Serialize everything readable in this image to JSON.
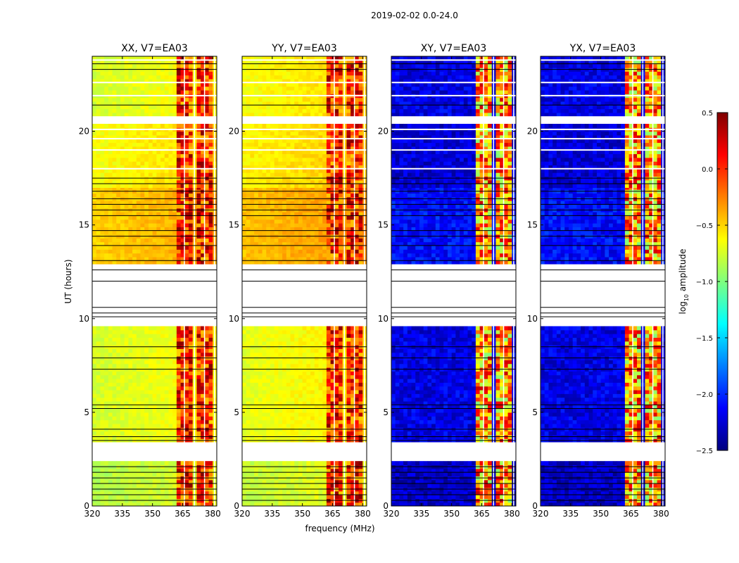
{
  "figure": {
    "suptitle": "2019-02-02 0.0-24.0",
    "xlabel": "frequency (MHz)",
    "ylabel": "UT (hours)",
    "colorbar_label_prefix": "log",
    "colorbar_label_sub": "10",
    "colorbar_label_suffix": " amplitude"
  },
  "chart_data": {
    "type": "heatmap",
    "colormap": "jet",
    "x": {
      "label": "frequency (MHz)",
      "range": [
        320,
        382
      ],
      "ticks": [
        320,
        335,
        350,
        365,
        380
      ],
      "tick_labels": [
        "320",
        "335",
        "350",
        "365",
        "380"
      ]
    },
    "y": {
      "label": "UT (hours)",
      "range": [
        0,
        24
      ],
      "ticks": [
        0,
        5,
        10,
        15,
        20
      ],
      "tick_labels": [
        "0",
        "5",
        "10",
        "15",
        "20"
      ]
    },
    "colorbar": {
      "label": "log10 amplitude",
      "range": [
        -2.5,
        0.5
      ],
      "ticks": [
        -2.5,
        -2.0,
        -1.5,
        -1.0,
        -0.5,
        0.0,
        0.5
      ],
      "tick_labels": [
        "−2.5",
        "−2.0",
        "−1.5",
        "−1.0",
        "−0.5",
        "0.0",
        "0.5"
      ],
      "stops": [
        "#00007f",
        "#0000ff",
        "#007fff",
        "#00ffff",
        "#7fff7f",
        "#ffff00",
        "#ff7f00",
        "#ff0000",
        "#7f0000"
      ]
    },
    "panels": [
      {
        "title": "XX, V7=EA03",
        "level_by_segment": [
          {
            "ut": [
              0.0,
              2.4
            ],
            "value": -0.8
          },
          {
            "ut": [
              3.4,
              9.6
            ],
            "value": -0.7
          },
          {
            "ut": [
              12.9,
              17.0
            ],
            "value": -0.45
          },
          {
            "ut": [
              17.0,
              20.4
            ],
            "value": -0.6
          },
          {
            "ut": [
              20.8,
              24.0
            ],
            "value": -0.7
          }
        ],
        "band_freq_centers_mhz": [
          363.5,
          368.5,
          373.5,
          378.5
        ],
        "band_values_range": [
          -0.5,
          0.5
        ]
      },
      {
        "title": "YY, V7=EA03",
        "level_by_segment": [
          {
            "ut": [
              0.0,
              2.4
            ],
            "value": -0.75
          },
          {
            "ut": [
              3.4,
              9.6
            ],
            "value": -0.65
          },
          {
            "ut": [
              12.9,
              17.0
            ],
            "value": -0.4
          },
          {
            "ut": [
              17.0,
              20.4
            ],
            "value": -0.55
          },
          {
            "ut": [
              20.8,
              24.0
            ],
            "value": -0.6
          }
        ],
        "band_freq_centers_mhz": [
          363.5,
          368.5,
          373.5,
          378.5
        ],
        "band_values_range": [
          -0.5,
          0.5
        ]
      },
      {
        "title": "XY, V7=EA03",
        "level_by_segment": [
          {
            "ut": [
              0.0,
              2.4
            ],
            "value": -2.3
          },
          {
            "ut": [
              3.4,
              9.6
            ],
            "value": -2.2
          },
          {
            "ut": [
              12.9,
              17.0
            ],
            "value": -2.1
          },
          {
            "ut": [
              17.0,
              20.4
            ],
            "value": -2.25
          },
          {
            "ut": [
              20.8,
              24.0
            ],
            "value": -2.2
          }
        ],
        "band_freq_centers_mhz": [
          363.5,
          368.5,
          373.5,
          378.5
        ],
        "band_values_range": [
          -1.0,
          0.3
        ]
      },
      {
        "title": "YX, V7=EA03",
        "level_by_segment": [
          {
            "ut": [
              0.0,
              2.4
            ],
            "value": -2.3
          },
          {
            "ut": [
              3.4,
              9.6
            ],
            "value": -2.2
          },
          {
            "ut": [
              12.9,
              17.0
            ],
            "value": -2.1
          },
          {
            "ut": [
              17.0,
              20.4
            ],
            "value": -2.25
          },
          {
            "ut": [
              20.8,
              24.0
            ],
            "value": -2.2
          }
        ],
        "band_freq_centers_mhz": [
          363.5,
          368.5,
          373.5,
          378.5
        ],
        "band_values_range": [
          -1.0,
          0.3
        ]
      }
    ],
    "flagged_ut_gaps": [
      [
        2.4,
        3.4
      ],
      [
        9.6,
        12.9
      ],
      [
        20.4,
        20.8
      ]
    ]
  }
}
